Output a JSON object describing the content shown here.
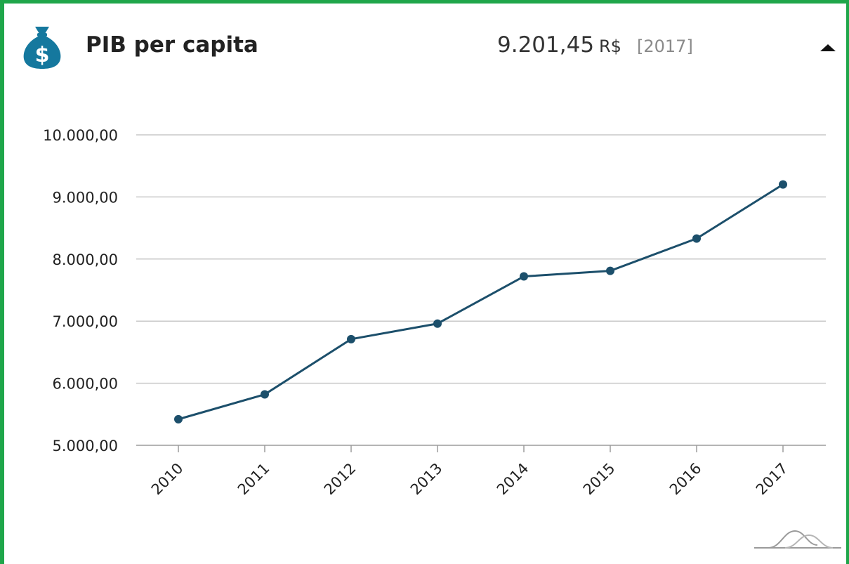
{
  "header": {
    "title": "PIB per capita",
    "value": "9.201,45",
    "unit": "R$",
    "year": "[2017]",
    "icon": "money-bag-dollar-icon",
    "collapse_icon": "caret-up-icon"
  },
  "colors": {
    "border": "#1fa64a",
    "line": "#1c4f6b",
    "icon": "#15789e",
    "grid": "#c8c8c8"
  },
  "chart_data": {
    "type": "line",
    "title": "PIB per capita",
    "xlabel": "",
    "ylabel": "",
    "categories": [
      "2010",
      "2011",
      "2012",
      "2013",
      "2014",
      "2015",
      "2016",
      "2017"
    ],
    "series": [
      {
        "values": [
          5420,
          5820,
          6710,
          6960,
          7720,
          7810,
          8330,
          9201.45
        ]
      }
    ],
    "ylim": [
      5000,
      10000
    ],
    "yticks": [
      5000,
      6000,
      7000,
      8000,
      9000,
      10000
    ],
    "ytick_labels": [
      "5.000,00",
      "6.000,00",
      "7.000,00",
      "8.000,00",
      "9.000,00",
      "10.000,00"
    ],
    "grid": true,
    "legend": "none"
  },
  "footer": {
    "chart_type_icon": "line-chart-toggle-icon"
  }
}
